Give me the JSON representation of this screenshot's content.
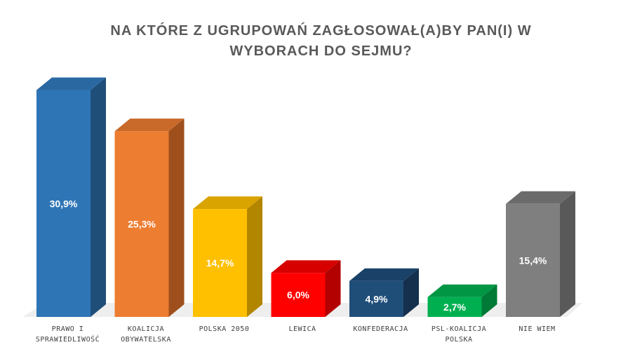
{
  "chart_data": {
    "type": "bar",
    "title_lines": [
      "NA KTÓRE Z UGRUPOWAŃ ZAGŁOSOWAŁ(A)BY PAN(I) W",
      "WYBORACH DO SEJMU?"
    ],
    "categories": [
      [
        "PRAWO I",
        "SPRAWIEDLIWOŚĆ"
      ],
      [
        "KOALICJA",
        "OBYWATELSKA"
      ],
      [
        "POLSKA 2050"
      ],
      [
        "LEWICA"
      ],
      [
        "KONFEDERACJA"
      ],
      [
        "PSL-KOALICJA",
        "POLSKA"
      ],
      [
        "NIE WIEM"
      ]
    ],
    "values": [
      30.9,
      25.3,
      14.7,
      6.0,
      4.9,
      2.7,
      15.4
    ],
    "value_labels": [
      "30,9%",
      "25,3%",
      "14,7%",
      "6,0%",
      "4,9%",
      "2,7%",
      "15,4%"
    ],
    "colors": [
      "#2E75B6",
      "#ED7D31",
      "#FFC000",
      "#FF0000",
      "#1F4E79",
      "#00B050",
      "#7F7F7F"
    ],
    "side_colors": [
      "#1F4E79",
      "#9E4F1C",
      "#B38600",
      "#B30000",
      "#14304D",
      "#007A36",
      "#595959"
    ],
    "top_colors": [
      "#2A68A2",
      "#C9692A",
      "#D9A300",
      "#D60000",
      "#1A4268",
      "#009644",
      "#6B6B6B"
    ],
    "ylim": [
      0,
      32
    ],
    "grid": false,
    "legend": "none"
  }
}
